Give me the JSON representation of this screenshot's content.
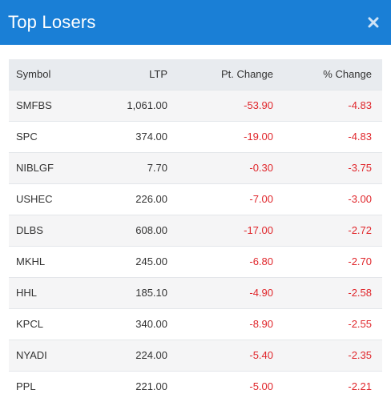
{
  "header": {
    "title": "Top Losers",
    "close_icon": "close-icon",
    "color": "#1a7fd6"
  },
  "table": {
    "columns": [
      "Symbol",
      "LTP",
      "Pt. Change",
      "% Change"
    ],
    "rows": [
      {
        "symbol": "SMFBS",
        "ltp": "1,061.00",
        "pt_change": "-53.90",
        "pct_change": "-4.83"
      },
      {
        "symbol": "SPC",
        "ltp": "374.00",
        "pt_change": "-19.00",
        "pct_change": "-4.83"
      },
      {
        "symbol": "NIBLGF",
        "ltp": "7.70",
        "pt_change": "-0.30",
        "pct_change": "-3.75"
      },
      {
        "symbol": "USHEC",
        "ltp": "226.00",
        "pt_change": "-7.00",
        "pct_change": "-3.00"
      },
      {
        "symbol": "DLBS",
        "ltp": "608.00",
        "pt_change": "-17.00",
        "pct_change": "-2.72"
      },
      {
        "symbol": "MKHL",
        "ltp": "245.00",
        "pt_change": "-6.80",
        "pct_change": "-2.70"
      },
      {
        "symbol": "HHL",
        "ltp": "185.10",
        "pt_change": "-4.90",
        "pct_change": "-2.58"
      },
      {
        "symbol": "KPCL",
        "ltp": "340.00",
        "pt_change": "-8.90",
        "pct_change": "-2.55"
      },
      {
        "symbol": "NYADI",
        "ltp": "224.00",
        "pt_change": "-5.40",
        "pct_change": "-2.35"
      },
      {
        "symbol": "PPL",
        "ltp": "221.00",
        "pt_change": "-5.00",
        "pct_change": "-2.21"
      }
    ],
    "negative_color": "#e0262b"
  }
}
